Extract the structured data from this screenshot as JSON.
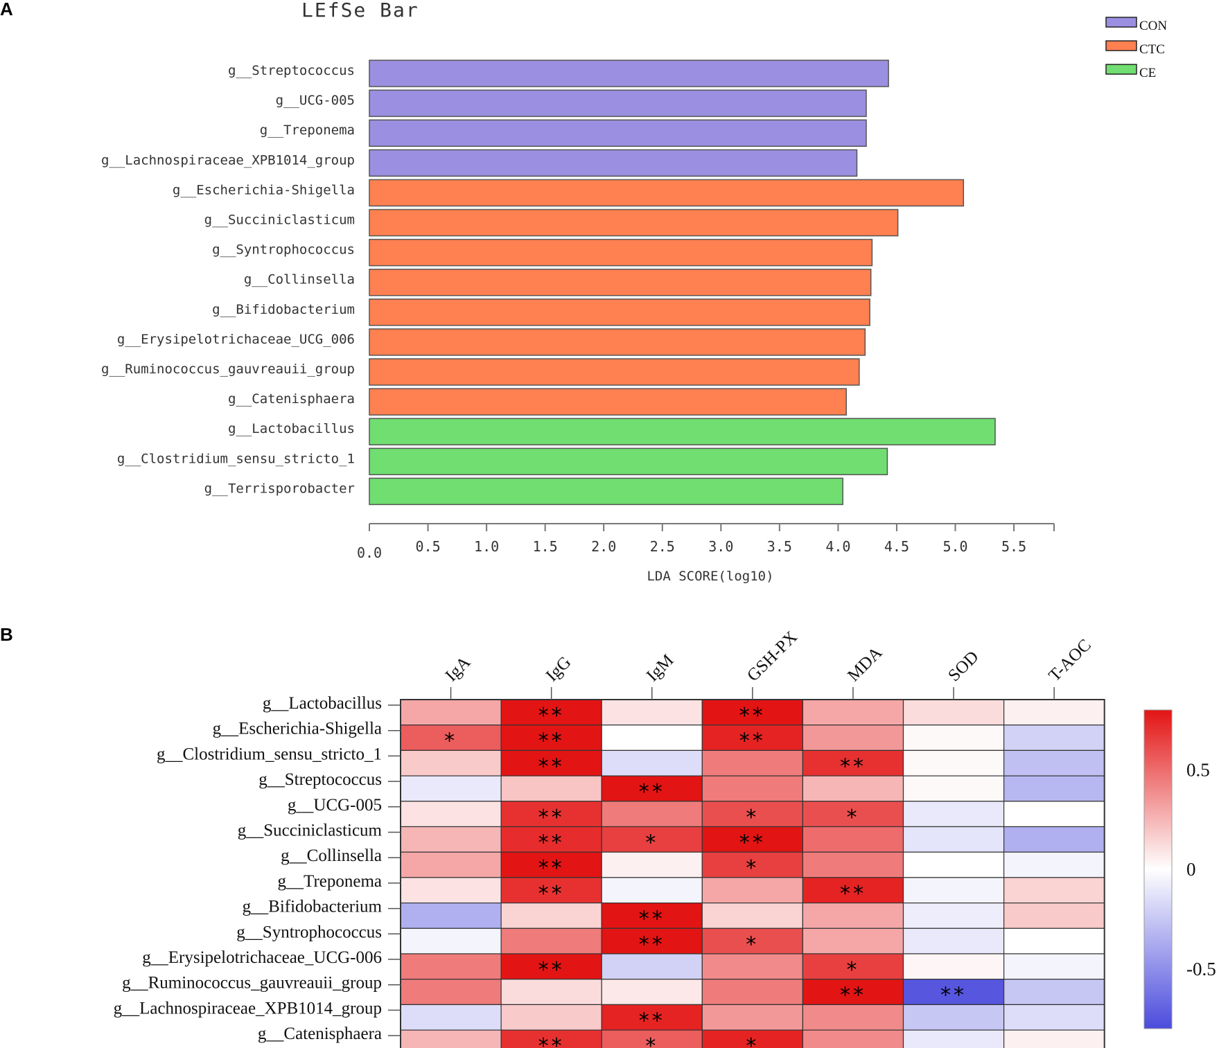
{
  "panel_a_label": "A",
  "panel_b_label": "B",
  "colors": {
    "CON": "#9a8fe0",
    "CTC": "#ff8050",
    "CE": "#70de70"
  },
  "chart_data": [
    {
      "type": "bar",
      "orientation": "horizontal",
      "title": "LEfSe Bar",
      "xlabel": "LDA SCORE(log10)",
      "xlim": [
        0,
        5.75
      ],
      "xticks": [
        "0.0",
        "0.5",
        "1.0",
        "1.5",
        "2.0",
        "2.5",
        "3.0",
        "3.5",
        "4.0",
        "4.5",
        "5.0",
        "5.5"
      ],
      "legend": {
        "position": "top-right",
        "entries": [
          "CON",
          "CTC",
          "CE"
        ]
      },
      "bars": [
        {
          "label": "g__Streptococcus",
          "value": 4.43,
          "group": "CON"
        },
        {
          "label": "g__UCG-005",
          "value": 4.24,
          "group": "CON"
        },
        {
          "label": "g__Treponema",
          "value": 4.24,
          "group": "CON"
        },
        {
          "label": "g__Lachnospiraceae_XPB1014_group",
          "value": 4.16,
          "group": "CON"
        },
        {
          "label": "g__Escherichia-Shigella",
          "value": 5.07,
          "group": "CTC"
        },
        {
          "label": "g__Succiniclasticum",
          "value": 4.51,
          "group": "CTC"
        },
        {
          "label": "g__Syntrophococcus",
          "value": 4.29,
          "group": "CTC"
        },
        {
          "label": "g__Collinsella",
          "value": 4.28,
          "group": "CTC"
        },
        {
          "label": "g__Bifidobacterium",
          "value": 4.27,
          "group": "CTC"
        },
        {
          "label": "g__Erysipelotrichaceae_UCG_006",
          "value": 4.23,
          "group": "CTC"
        },
        {
          "label": "g__Ruminococcus_gauvreauii_group",
          "value": 4.18,
          "group": "CTC"
        },
        {
          "label": "g__Catenisphaera",
          "value": 4.07,
          "group": "CTC"
        },
        {
          "label": "g__Lactobacillus",
          "value": 5.34,
          "group": "CE"
        },
        {
          "label": "g__Clostridium_sensu_stricto_1",
          "value": 4.42,
          "group": "CE"
        },
        {
          "label": "g__Terrisporobacter",
          "value": 4.04,
          "group": "CE"
        }
      ]
    },
    {
      "type": "heatmap",
      "columns": [
        "IgA",
        "IgG",
        "IgM",
        "GSH-PX",
        "MDA",
        "SOD",
        "T-AOC"
      ],
      "rows": [
        "g__Lactobacillus",
        "g__Escherichia-Shigella",
        "g__Clostridium_sensu_stricto_1",
        "g__Streptococcus",
        "g__UCG-005",
        "g__Succiniclasticum",
        "g__Collinsella",
        "g__Treponema",
        "g__Bifidobacterium",
        "g__Syntrophococcus",
        "g__Erysipelotrichaceae_UCG-006",
        "g__Ruminococcus_gauvreauii_group",
        "g__Lachnospiraceae_XPB1014_group",
        "g__Catenisphaera"
      ],
      "values": [
        [
          0.3,
          0.88,
          0.1,
          0.8,
          0.3,
          0.12,
          0.05
        ],
        [
          0.55,
          0.85,
          0.0,
          0.75,
          0.35,
          0.02,
          -0.2
        ],
        [
          0.18,
          0.8,
          -0.15,
          0.45,
          0.7,
          0.02,
          -0.28
        ],
        [
          -0.1,
          0.2,
          0.9,
          0.45,
          0.25,
          0.02,
          -0.32
        ],
        [
          0.1,
          0.7,
          0.45,
          0.6,
          0.6,
          -0.1,
          0.0
        ],
        [
          0.25,
          0.72,
          0.65,
          0.85,
          0.5,
          -0.12,
          -0.35
        ],
        [
          0.3,
          0.95,
          0.05,
          0.65,
          0.45,
          0.0,
          -0.05
        ],
        [
          0.1,
          0.7,
          -0.05,
          0.3,
          0.75,
          -0.05,
          0.15
        ],
        [
          -0.35,
          0.15,
          0.85,
          0.15,
          0.3,
          -0.08,
          0.18
        ],
        [
          -0.05,
          0.45,
          0.85,
          0.6,
          0.3,
          -0.1,
          0.0
        ],
        [
          0.45,
          0.82,
          -0.2,
          0.4,
          0.65,
          0.03,
          -0.05
        ],
        [
          0.45,
          0.12,
          0.08,
          0.45,
          0.8,
          -0.75,
          -0.25
        ],
        [
          -0.15,
          0.18,
          0.75,
          0.35,
          0.4,
          -0.25,
          -0.15
        ],
        [
          0.25,
          0.7,
          0.55,
          0.75,
          0.4,
          -0.1,
          0.05
        ]
      ],
      "significance": [
        [
          "",
          "**",
          "",
          "**",
          "",
          "",
          ""
        ],
        [
          "*",
          "**",
          "",
          "**",
          "",
          "",
          ""
        ],
        [
          "",
          "**",
          "",
          "",
          "**",
          "",
          ""
        ],
        [
          "",
          "",
          "**",
          "",
          "",
          "",
          ""
        ],
        [
          "",
          "**",
          "",
          "*",
          "*",
          "",
          ""
        ],
        [
          "",
          "**",
          "*",
          "**",
          "",
          "",
          ""
        ],
        [
          "",
          "**",
          "",
          "*",
          "",
          "",
          ""
        ],
        [
          "",
          "**",
          "",
          "",
          "**",
          "",
          ""
        ],
        [
          "",
          "",
          "**",
          "",
          "",
          "",
          ""
        ],
        [
          "",
          "",
          "**",
          "*",
          "",
          "",
          ""
        ],
        [
          "",
          "**",
          "",
          "",
          "*",
          "",
          ""
        ],
        [
          "",
          "",
          "",
          "",
          "**",
          "**",
          ""
        ],
        [
          "",
          "",
          "**",
          "",
          "",
          "",
          ""
        ],
        [
          "",
          "**",
          "*",
          "*",
          "",
          "",
          ""
        ]
      ],
      "colorbar": {
        "range": [
          -0.8,
          0.8
        ],
        "ticks": [
          "0.5",
          "0",
          "-0.5"
        ],
        "low_color": "#4b4bdd",
        "mid_color": "#ffffff",
        "high_color": "#e31414"
      }
    }
  ]
}
